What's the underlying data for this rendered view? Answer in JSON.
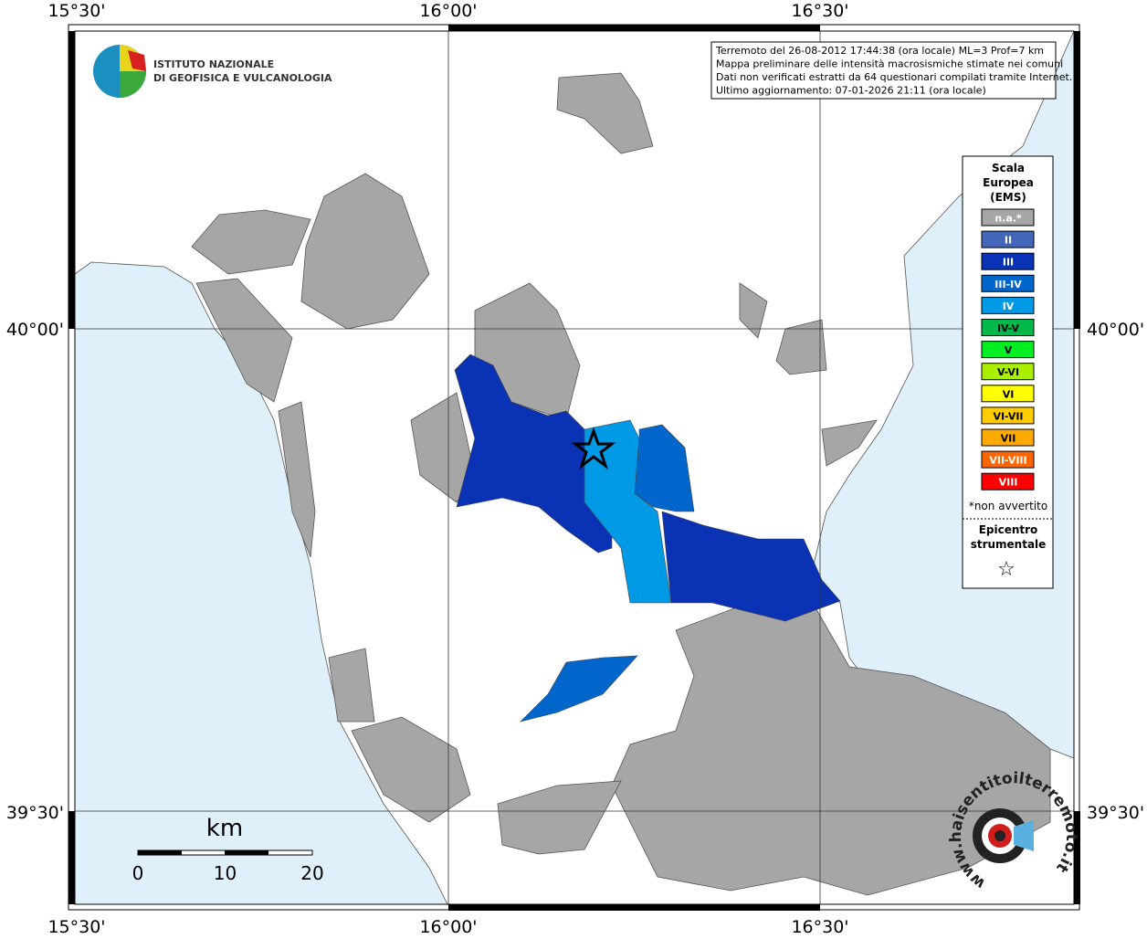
{
  "axes": {
    "lon_labels": [
      "15°30'",
      "16°00'",
      "16°30'"
    ],
    "lat_labels": [
      "40°00'",
      "39°30'"
    ]
  },
  "logo": {
    "line1": "ISTITUTO NAZIONALE",
    "line2": "DI GEOFISICA E VULCANOLOGIA"
  },
  "info": [
    "Terremoto del 26-08-2012 17:44:38 (ora locale) ML=3 Prof=7 km",
    "Mappa preliminare delle intensità macrosismiche stimate nei comuni",
    "Dati non verificati estratti da 64 questionari compilati tramite Internet.",
    "Ultimo aggiornamento: 07-01-2026 21:11 (ora locale)"
  ],
  "legend": {
    "title": [
      "Scala",
      "Europea",
      "(EMS)"
    ],
    "items": [
      {
        "label": "n.a.*",
        "color": "#a6a6a6"
      },
      {
        "label": "II",
        "color": "#4466b8"
      },
      {
        "label": "III",
        "color": "#0a32b4"
      },
      {
        "label": "III-IV",
        "color": "#0066cc"
      },
      {
        "label": "IV",
        "color": "#0099e6"
      },
      {
        "label": "IV-V",
        "color": "#00b84a"
      },
      {
        "label": "V",
        "color": "#00ee22"
      },
      {
        "label": "V-VI",
        "color": "#aaee00"
      },
      {
        "label": "VI",
        "color": "#ffff00"
      },
      {
        "label": "VI-VII",
        "color": "#ffcc00"
      },
      {
        "label": "VII",
        "color": "#ffaa00"
      },
      {
        "label": "VII-VIII",
        "color": "#ff6600"
      },
      {
        "label": "VIII",
        "color": "#ff0000"
      }
    ],
    "note": "*non avvertito",
    "epicentre": [
      "Epicentro",
      "strumentale"
    ],
    "star": "☆"
  },
  "scale_bar": {
    "unit": "km",
    "ticks": [
      0,
      10,
      20
    ]
  },
  "badge": "www.haisentitoilterremoto.it"
}
